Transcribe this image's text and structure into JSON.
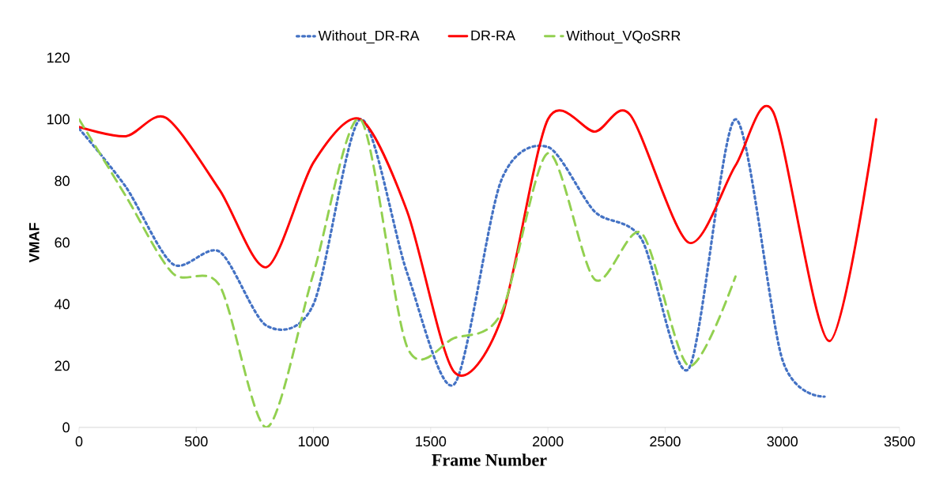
{
  "chart_data": {
    "type": "line",
    "xlabel": "Frame Number",
    "ylabel": "VMAF",
    "xlim": [
      0,
      3500
    ],
    "xticks": [
      0,
      500,
      1000,
      1500,
      2000,
      2500,
      3000,
      3500
    ],
    "ylim": [
      0,
      120
    ],
    "yticks": [
      0,
      20,
      40,
      60,
      80,
      100,
      120
    ],
    "grid": false,
    "legend": "top",
    "marker": "none",
    "series": [
      {
        "name": "Without_DR-RA",
        "color": "#4472c4",
        "line_style": "dotted",
        "x": [
          0,
          200,
          400,
          600,
          800,
          1000,
          1200,
          1400,
          1600,
          1800,
          2000,
          2200,
          2400,
          2600,
          2800,
          3000,
          3180
        ],
        "values": [
          97,
          78,
          53,
          57,
          33,
          40,
          100,
          50,
          14,
          80,
          91,
          70,
          61,
          19,
          100,
          22,
          10
        ]
      },
      {
        "name": "DR-RA",
        "color": "#ff0000",
        "line_style": "solid",
        "x": [
          0,
          200,
          370,
          600,
          800,
          1000,
          1200,
          1400,
          1600,
          1800,
          2000,
          2200,
          2350,
          2600,
          2800,
          2960,
          3200,
          3400
        ],
        "values": [
          97.5,
          94.5,
          100.5,
          77,
          52,
          86,
          100,
          70,
          18,
          35,
          100,
          96,
          101.5,
          60,
          85,
          102.5,
          28,
          100
        ]
      },
      {
        "name": "Without_VQoSRR",
        "color": "#92d050",
        "line_style": "dashed",
        "x": [
          0,
          200,
          400,
          600,
          800,
          1000,
          1200,
          1400,
          1600,
          1800,
          2000,
          2200,
          2400,
          2600,
          2800
        ],
        "values": [
          100,
          75,
          50,
          46,
          0,
          50,
          100,
          26,
          29,
          37,
          89,
          48,
          63,
          20,
          49
        ]
      }
    ]
  }
}
